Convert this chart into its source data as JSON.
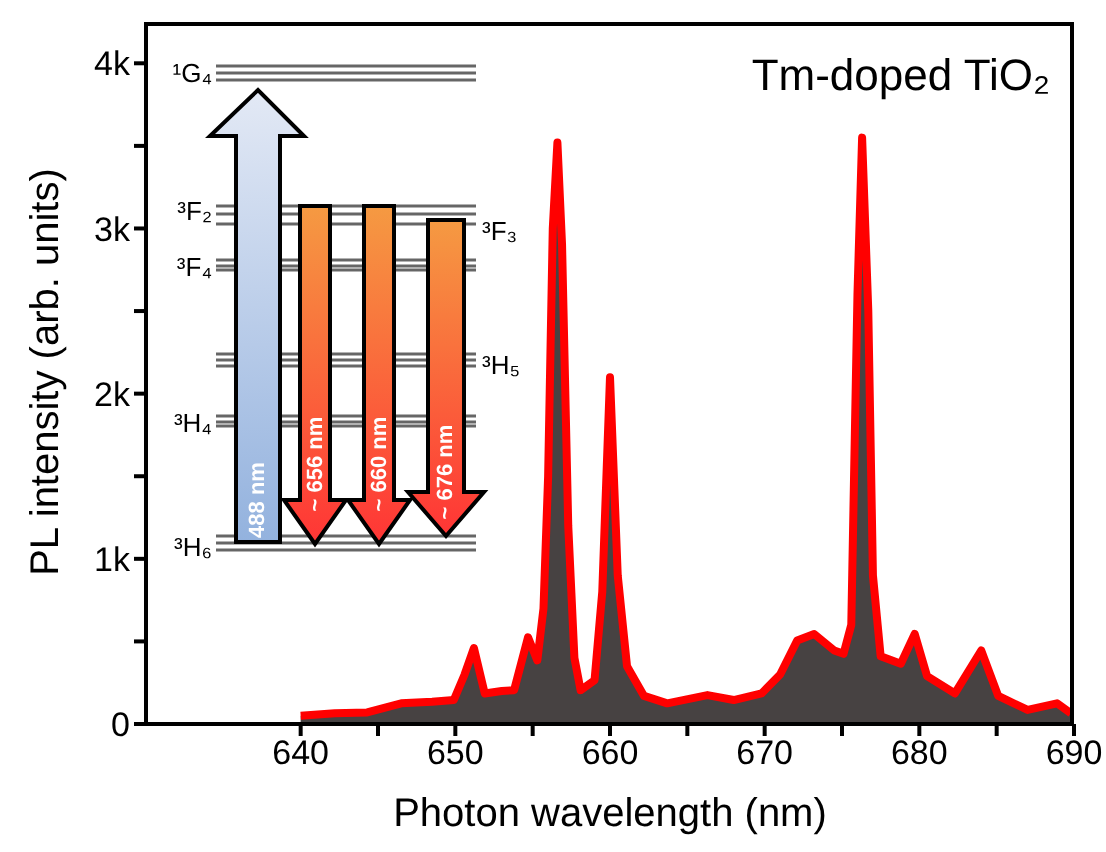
{
  "chart_data": {
    "type": "area",
    "title": "Tm-doped TiO₂",
    "xlabel": "Photon wavelength (nm)",
    "ylabel": "PL intensity (arb. units)",
    "x": [
      640,
      642.2,
      644.3,
      646.5,
      648.5,
      649.9,
      650.6,
      651.2,
      651.9,
      653.0,
      653.8,
      654.7,
      655.3,
      655.7,
      656.0,
      656.3,
      656.6,
      656.9,
      657.3,
      657.7,
      658.1,
      659.0,
      659.5,
      660.0,
      660.5,
      661.1,
      662.2,
      663.7,
      666.3,
      668.0,
      669.8,
      671.0,
      672.1,
      673.2,
      674.5,
      675.1,
      675.6,
      676.0,
      676.3,
      676.7,
      677.0,
      677.5,
      678.8,
      679.7,
      680.5,
      682.3,
      684.0,
      685.1,
      687.0,
      688.9,
      689.8
    ],
    "series": [
      {
        "color": "#ff0000",
        "values": [
          50,
          65,
          70,
          125,
          135,
          145,
          300,
          460,
          185,
          200,
          205,
          525,
          385,
          700,
          1500,
          3000,
          3520,
          2900,
          1200,
          400,
          205,
          265,
          800,
          2100,
          900,
          350,
          170,
          125,
          175,
          145,
          185,
          300,
          505,
          545,
          445,
          425,
          600,
          2600,
          3550,
          2500,
          900,
          410,
          365,
          545,
          290,
          185,
          445,
          170,
          85,
          125,
          65
        ]
      }
    ],
    "xlim": [
      630,
      690
    ],
    "xticks": [
      640,
      {
        "value": 645,
        "label": null
      },
      650,
      {
        "value": 655,
        "label": null
      },
      660,
      {
        "value": 665,
        "label": null
      },
      670,
      {
        "value": 675,
        "label": null
      },
      680,
      {
        "value": 685,
        "label": null
      },
      690
    ],
    "ylim": [
      0,
      4250
    ],
    "yticks": [
      0,
      {
        "value": 500,
        "label": null
      },
      {
        "value": 1000,
        "label": "1k"
      },
      {
        "value": 1500,
        "label": null
      },
      {
        "value": 2000,
        "label": "2k"
      },
      {
        "value": 2500,
        "label": null
      },
      {
        "value": 3000,
        "label": "3k"
      },
      {
        "value": 3500,
        "label": null
      },
      {
        "value": 4000,
        "label": "4k"
      }
    ],
    "annotations": [
      "¹G₄",
      "³F₂",
      "³F₃",
      "³F₄",
      "³H₅",
      "³H₄",
      "³H₆",
      "488 nm",
      "~ 656 nm",
      "~ 660 nm",
      "~ 676 nm"
    ]
  }
}
